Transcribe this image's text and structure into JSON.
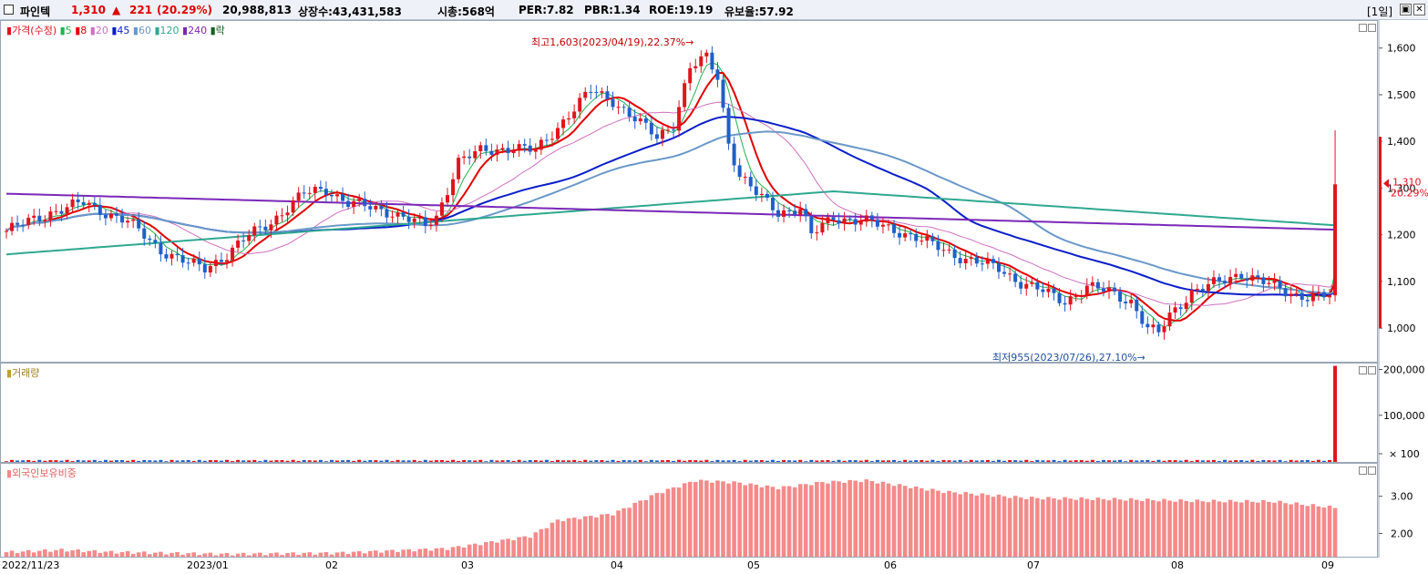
{
  "header": {
    "name": "파인텍",
    "price": "1,310",
    "arrow": "▲",
    "change": "221",
    "change_pct": "(20.29%)",
    "volume": "20,988,813",
    "listed": "상장수:43,431,583",
    "mktcap": "시총:568억",
    "per": "PER:7.82",
    "pbr": "PBR:1.34",
    "roe": "ROE:19.19",
    "float": "유보율:57.92",
    "period": "[1일]",
    "btn_restore": "▣",
    "btn_close": "✕"
  },
  "legend": {
    "price": "가격(수정)",
    "ma5": "5",
    "ma8": "8",
    "ma20": "20",
    "ma45": "45",
    "ma60": "60",
    "ma120": "120",
    "ma240": "240",
    "drop": "락",
    "volume": "거래량",
    "foreign": "외국인보유비중"
  },
  "colors": {
    "up": "#e0141e",
    "down": "#1f5fc8",
    "ma5": "#22b14c",
    "ma8": "#e00000",
    "ma20": "#d070c0",
    "ma45": "#0a1ec8",
    "ma60": "#6a98c8",
    "ma120": "#30a890",
    "ma240": "#7a28b8",
    "foreign_bar": "#f48a8a"
  },
  "chart_data": [
    {
      "type": "candlestick",
      "title": "",
      "series_name": "가격(수정)",
      "ylim": [
        930,
        1660
      ],
      "yticks": [
        "1,600",
        "1,500",
        "1,400",
        "1,300",
        "1,200",
        "1,100",
        "1,000"
      ],
      "ytick_values": [
        1600,
        1500,
        1400,
        1300,
        1200,
        1100,
        1000
      ],
      "xticks": [
        "2022/11/23",
        "2023/01",
        "02",
        "03",
        "04",
        "05",
        "06",
        "07",
        "08",
        "09"
      ],
      "anchors": [
        {
          "d": 0,
          "p": 1210
        },
        {
          "d": 8,
          "p": 1250
        },
        {
          "d": 14,
          "p": 1270
        },
        {
          "d": 22,
          "p": 1230
        },
        {
          "d": 28,
          "p": 1170
        },
        {
          "d": 33,
          "p": 1140
        },
        {
          "d": 36,
          "p": 1130
        },
        {
          "d": 40,
          "p": 1160
        },
        {
          "d": 44,
          "p": 1200
        },
        {
          "d": 48,
          "p": 1230
        },
        {
          "d": 54,
          "p": 1290
        },
        {
          "d": 58,
          "p": 1300
        },
        {
          "d": 62,
          "p": 1270
        },
        {
          "d": 70,
          "p": 1250
        },
        {
          "d": 76,
          "p": 1220
        },
        {
          "d": 78,
          "p": 1240
        },
        {
          "d": 82,
          "p": 1360
        },
        {
          "d": 86,
          "p": 1380
        },
        {
          "d": 92,
          "p": 1390
        },
        {
          "d": 96,
          "p": 1380
        },
        {
          "d": 102,
          "p": 1460
        },
        {
          "d": 106,
          "p": 1510
        },
        {
          "d": 110,
          "p": 1490
        },
        {
          "d": 114,
          "p": 1450
        },
        {
          "d": 118,
          "p": 1410
        },
        {
          "d": 121,
          "p": 1440
        },
        {
          "d": 124,
          "p": 1560
        },
        {
          "d": 127,
          "p": 1580
        },
        {
          "d": 129,
          "p": 1540
        },
        {
          "d": 131,
          "p": 1400
        },
        {
          "d": 133,
          "p": 1330
        },
        {
          "d": 136,
          "p": 1290
        },
        {
          "d": 140,
          "p": 1250
        },
        {
          "d": 144,
          "p": 1260
        },
        {
          "d": 146,
          "p": 1200
        },
        {
          "d": 150,
          "p": 1240
        },
        {
          "d": 156,
          "p": 1230
        },
        {
          "d": 162,
          "p": 1210
        },
        {
          "d": 168,
          "p": 1180
        },
        {
          "d": 174,
          "p": 1150
        },
        {
          "d": 180,
          "p": 1130
        },
        {
          "d": 184,
          "p": 1100
        },
        {
          "d": 188,
          "p": 1080
        },
        {
          "d": 192,
          "p": 1060
        },
        {
          "d": 196,
          "p": 1090
        },
        {
          "d": 200,
          "p": 1080
        },
        {
          "d": 204,
          "p": 1060
        },
        {
          "d": 207,
          "p": 1000
        },
        {
          "d": 209,
          "p": 990
        },
        {
          "d": 211,
          "p": 1030
        },
        {
          "d": 215,
          "p": 1080
        },
        {
          "d": 220,
          "p": 1100
        },
        {
          "d": 224,
          "p": 1120
        },
        {
          "d": 228,
          "p": 1100
        },
        {
          "d": 232,
          "p": 1080
        },
        {
          "d": 236,
          "p": 1070
        },
        {
          "d": 240,
          "p": 1070
        },
        {
          "d": 241,
          "p": 1310
        }
      ],
      "last_price": "1,310",
      "last_pct": "20.29%",
      "annotations": {
        "high": "최고1,603(2023/04/19),22.37%→",
        "low": "최저955(2023/07/26),27.10%→"
      },
      "moving_averages": [
        5,
        8,
        20,
        45,
        60,
        120,
        240
      ]
    },
    {
      "type": "bar",
      "title": "",
      "series_name": "거래량",
      "yticks": [
        "200,000",
        "100,000",
        "× 100"
      ],
      "ytick_values": [
        200000,
        100000,
        0
      ],
      "ylim": [
        0,
        215000
      ],
      "last_value": 209888,
      "typical_value": 1500
    },
    {
      "type": "bar",
      "title": "",
      "series_name": "외국인보유비중",
      "yticks": [
        "3.00",
        "2.00"
      ],
      "ytick_values": [
        3.0,
        2.0
      ],
      "ylim": [
        1.4,
        3.9
      ],
      "anchors": [
        {
          "d": 0,
          "v": 1.52
        },
        {
          "d": 10,
          "v": 1.58
        },
        {
          "d": 20,
          "v": 1.52
        },
        {
          "d": 40,
          "v": 1.47
        },
        {
          "d": 60,
          "v": 1.5
        },
        {
          "d": 80,
          "v": 1.62
        },
        {
          "d": 95,
          "v": 1.95
        },
        {
          "d": 100,
          "v": 2.38
        },
        {
          "d": 110,
          "v": 2.55
        },
        {
          "d": 118,
          "v": 3.1
        },
        {
          "d": 125,
          "v": 3.45
        },
        {
          "d": 132,
          "v": 3.4
        },
        {
          "d": 140,
          "v": 3.25
        },
        {
          "d": 148,
          "v": 3.4
        },
        {
          "d": 156,
          "v": 3.45
        },
        {
          "d": 170,
          "v": 3.15
        },
        {
          "d": 185,
          "v": 2.98
        },
        {
          "d": 200,
          "v": 2.95
        },
        {
          "d": 215,
          "v": 2.9
        },
        {
          "d": 230,
          "v": 2.88
        },
        {
          "d": 241,
          "v": 2.72
        }
      ]
    }
  ]
}
